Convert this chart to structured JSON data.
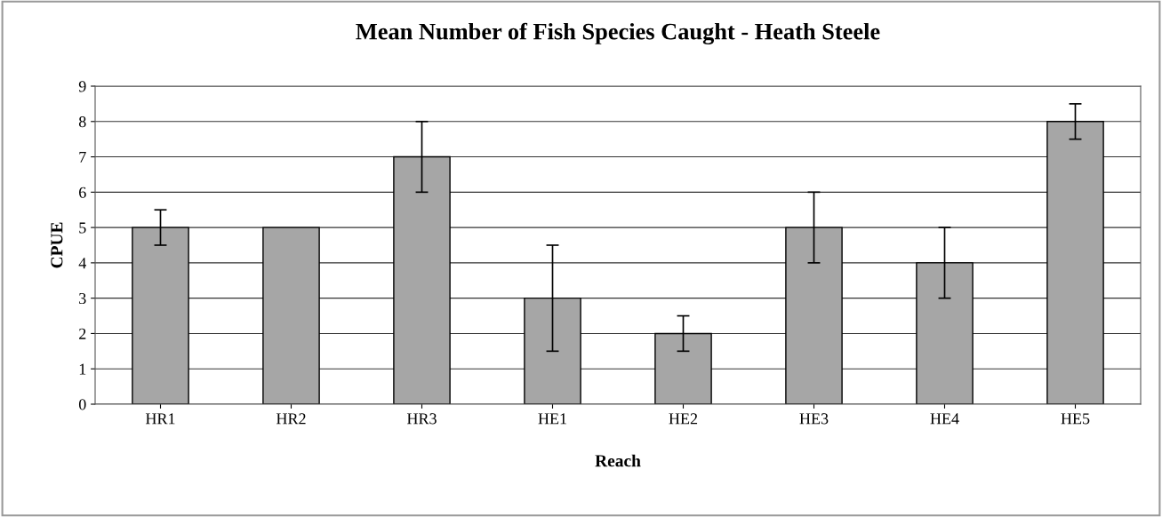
{
  "chart_data": {
    "type": "bar",
    "title": "Mean Number of Fish Species Caught - Heath Steele",
    "xlabel": "Reach",
    "ylabel": "CPUE",
    "categories": [
      "HR1",
      "HR2",
      "HR3",
      "HE1",
      "HE2",
      "HE3",
      "HE4",
      "HE5"
    ],
    "values": [
      5,
      5,
      7,
      3,
      2,
      5,
      4,
      8
    ],
    "errors": [
      0.5,
      null,
      1,
      1.5,
      0.5,
      1,
      1,
      0.5
    ],
    "color": "#a6a6a6",
    "ylim": [
      0,
      9
    ],
    "yticks": [
      0,
      1,
      2,
      3,
      4,
      5,
      6,
      7,
      8,
      9
    ],
    "grid": "y",
    "legend": false
  }
}
